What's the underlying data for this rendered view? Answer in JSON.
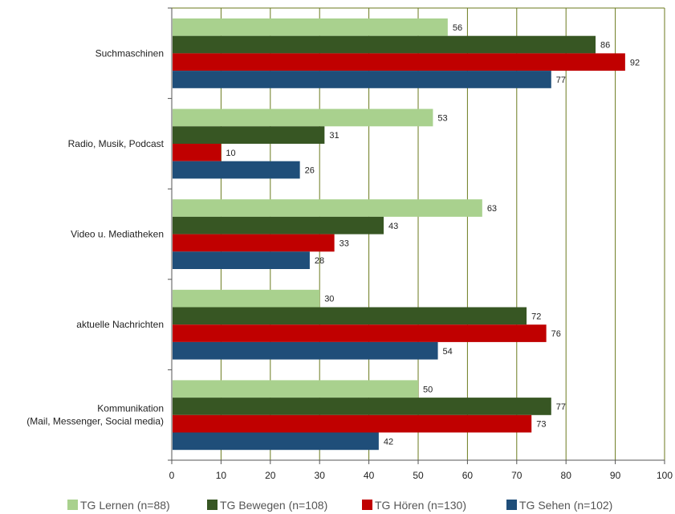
{
  "chart_data": {
    "type": "bar",
    "orientation": "horizontal",
    "categories": [
      [
        "Suchmaschinen"
      ],
      [
        "Radio, Musik, Podcast"
      ],
      [
        "Video u. Mediatheken"
      ],
      [
        "aktuelle Nachrichten"
      ],
      [
        "Kommunikation",
        "(Mail, Messenger, Social media)"
      ]
    ],
    "series": [
      {
        "name": "TG Lernen (n=88)",
        "color": "#a9d18e",
        "values": [
          56,
          53,
          63,
          30,
          50
        ]
      },
      {
        "name": "TG Bewegen (n=108)",
        "color": "#375623",
        "values": [
          86,
          31,
          43,
          72,
          77
        ]
      },
      {
        "name": "TG Hören (n=130)",
        "color": "#c00000",
        "values": [
          92,
          10,
          33,
          76,
          73
        ]
      },
      {
        "name": "TG Sehen (n=102)",
        "color": "#1f4e79",
        "values": [
          77,
          26,
          28,
          54,
          42
        ]
      }
    ],
    "xlim": [
      0,
      100
    ],
    "x_ticks": [
      0,
      10,
      20,
      30,
      40,
      50,
      60,
      70,
      80,
      90,
      100
    ],
    "grid": "vertical",
    "gridline_color": "#6b7a1e",
    "legend_position": "bottom",
    "title": "",
    "xlabel": "",
    "ylabel": ""
  }
}
